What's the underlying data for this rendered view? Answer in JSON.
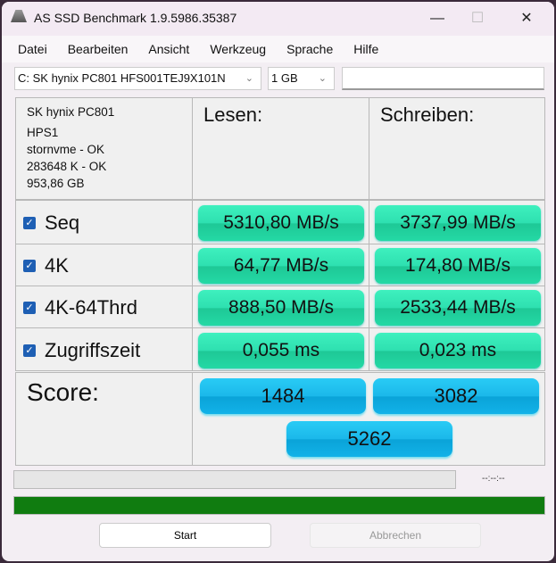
{
  "window": {
    "title": "AS SSD Benchmark 1.9.5986.35387",
    "minimize": "—",
    "maximize": "☐",
    "close": "✕"
  },
  "menu": [
    "Datei",
    "Bearbeiten",
    "Ansicht",
    "Werkzeug",
    "Sprache",
    "Hilfe"
  ],
  "toolbar": {
    "drive": "C: SK hynix PC801 HFS001TEJ9X101N",
    "size": "1 GB",
    "text": ""
  },
  "info": {
    "model": "SK hynix PC801",
    "firmware": "HPS1",
    "driver": "stornvme - OK",
    "alignment": "283648 K - OK",
    "capacity": "953,86 GB"
  },
  "headers": {
    "read": "Lesen:",
    "write": "Schreiben:"
  },
  "rows": [
    {
      "label": "Seq",
      "checked": true,
      "read": "5310,80 MB/s",
      "write": "3737,99 MB/s"
    },
    {
      "label": "4K",
      "checked": true,
      "read": "64,77 MB/s",
      "write": "174,80 MB/s"
    },
    {
      "label": "4K-64Thrd",
      "checked": true,
      "read": "888,50 MB/s",
      "write": "2533,44 MB/s"
    },
    {
      "label": "Zugriffszeit",
      "checked": true,
      "read": "0,055 ms",
      "write": "0,023 ms"
    }
  ],
  "score": {
    "label": "Score:",
    "read": "1484",
    "write": "3082",
    "total": "5262"
  },
  "progress": {
    "current_percent": 0,
    "time": "--:--:--",
    "overall_percent": 100,
    "overall_color": "#107c10"
  },
  "buttons": {
    "start": "Start",
    "cancel": "Abbrechen"
  },
  "colors": {
    "value_box": "#2ee0b0",
    "score_box": "#1bb8ea"
  }
}
